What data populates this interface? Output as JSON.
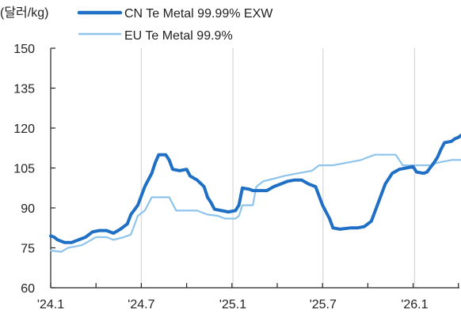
{
  "chart_data": {
    "type": "line",
    "unit_label": "(달러/kg)",
    "ylim": [
      60,
      150
    ],
    "y_ticks": [
      60,
      75,
      90,
      105,
      120,
      135,
      150
    ],
    "x_tick_labels": [
      "'24.1",
      "'24.7",
      "'25.1",
      "'25.7",
      "'26.1"
    ],
    "x_ticks": [
      "2024-01-01",
      "2024-07-01",
      "2025-01-01",
      "2025-07-01",
      "2026-01-01"
    ],
    "xlim": [
      "2024-01-01",
      "2026-04-01"
    ],
    "grid": "vertical",
    "legend_position": "top",
    "series": [
      {
        "name": "CN Te Metal 99.99% EXW",
        "color": "#1f6fc5",
        "points": [
          [
            "2024-01-01",
            79.5
          ],
          [
            "2024-01-08",
            79
          ],
          [
            "2024-01-15",
            78
          ],
          [
            "2024-01-22",
            77.5
          ],
          [
            "2024-01-29",
            77
          ],
          [
            "2024-02-12",
            77
          ],
          [
            "2024-02-26",
            78
          ],
          [
            "2024-03-11",
            79
          ],
          [
            "2024-03-25",
            81
          ],
          [
            "2024-04-08",
            81.5
          ],
          [
            "2024-04-22",
            81.5
          ],
          [
            "2024-05-06",
            80.5
          ],
          [
            "2024-05-20",
            82
          ],
          [
            "2024-06-03",
            84
          ],
          [
            "2024-06-10",
            87.5
          ],
          [
            "2024-06-24",
            91
          ],
          [
            "2024-07-08",
            98
          ],
          [
            "2024-07-22",
            103
          ],
          [
            "2024-07-29",
            107
          ],
          [
            "2024-08-05",
            110
          ],
          [
            "2024-08-19",
            110
          ],
          [
            "2024-08-26",
            108
          ],
          [
            "2024-09-02",
            104.5
          ],
          [
            "2024-09-16",
            104
          ],
          [
            "2024-09-30",
            104.5
          ],
          [
            "2024-10-07",
            102
          ],
          [
            "2024-10-21",
            100.5
          ],
          [
            "2024-11-04",
            98
          ],
          [
            "2024-11-11",
            94
          ],
          [
            "2024-11-18",
            92
          ],
          [
            "2024-11-25",
            89.5
          ],
          [
            "2024-12-09",
            89
          ],
          [
            "2024-12-23",
            88.5
          ],
          [
            "2025-01-06",
            89
          ],
          [
            "2025-01-13",
            91
          ],
          [
            "2025-01-20",
            97.5
          ],
          [
            "2025-02-03",
            97
          ],
          [
            "2025-02-10",
            96.5
          ],
          [
            "2025-02-24",
            96.5
          ],
          [
            "2025-03-10",
            96.5
          ],
          [
            "2025-03-24",
            98
          ],
          [
            "2025-04-07",
            99
          ],
          [
            "2025-04-21",
            100
          ],
          [
            "2025-05-05",
            100.5
          ],
          [
            "2025-05-19",
            100.5
          ],
          [
            "2025-06-02",
            99
          ],
          [
            "2025-06-16",
            98
          ],
          [
            "2025-06-30",
            91
          ],
          [
            "2025-07-14",
            86
          ],
          [
            "2025-07-21",
            82.5
          ],
          [
            "2025-08-04",
            82
          ],
          [
            "2025-08-25",
            82.5
          ],
          [
            "2025-09-08",
            82.5
          ],
          [
            "2025-09-22",
            83
          ],
          [
            "2025-10-06",
            85
          ],
          [
            "2025-10-20",
            92
          ],
          [
            "2025-11-03",
            99
          ],
          [
            "2025-11-17",
            103
          ],
          [
            "2025-12-01",
            104.5
          ],
          [
            "2025-12-15",
            105
          ],
          [
            "2025-12-29",
            105.5
          ],
          [
            "2026-01-05",
            103.5
          ],
          [
            "2026-01-19",
            103
          ],
          [
            "2026-01-26",
            103.5
          ],
          [
            "2026-02-09",
            107
          ],
          [
            "2026-02-16",
            109
          ],
          [
            "2026-02-23",
            112
          ],
          [
            "2026-03-02",
            114.5
          ],
          [
            "2026-03-16",
            115
          ],
          [
            "2026-03-23",
            116
          ],
          [
            "2026-03-30",
            116.5
          ],
          [
            "2026-04-06",
            117.5
          ],
          [
            "2026-04-13",
            118
          ],
          [
            "2026-04-20",
            119
          ],
          [
            "2026-04-27",
            119.5
          ],
          [
            "2026-05-04",
            118.5
          ]
        ]
      },
      {
        "name": "EU Te Metal 99.9%",
        "color": "#8ec4ec",
        "points": [
          [
            "2024-01-01",
            74
          ],
          [
            "2024-01-22",
            73.5
          ],
          [
            "2024-02-05",
            75
          ],
          [
            "2024-02-19",
            75.5
          ],
          [
            "2024-03-04",
            76
          ],
          [
            "2024-03-18",
            77.5
          ],
          [
            "2024-04-01",
            79
          ],
          [
            "2024-04-22",
            79
          ],
          [
            "2024-05-06",
            78
          ],
          [
            "2024-05-27",
            79
          ],
          [
            "2024-06-10",
            80
          ],
          [
            "2024-06-24",
            87
          ],
          [
            "2024-07-08",
            89
          ],
          [
            "2024-07-22",
            94
          ],
          [
            "2024-08-05",
            94
          ],
          [
            "2024-08-26",
            94
          ],
          [
            "2024-09-09",
            89
          ],
          [
            "2024-09-23",
            89
          ],
          [
            "2024-10-21",
            89
          ],
          [
            "2024-11-11",
            87.5
          ],
          [
            "2024-12-02",
            87
          ],
          [
            "2024-12-16",
            86
          ],
          [
            "2025-01-06",
            86
          ],
          [
            "2025-01-13",
            87
          ],
          [
            "2025-01-20",
            91
          ],
          [
            "2025-02-10",
            91
          ],
          [
            "2025-02-17",
            98
          ],
          [
            "2025-03-03",
            100
          ],
          [
            "2025-03-24",
            101
          ],
          [
            "2025-04-14",
            102
          ],
          [
            "2025-05-12",
            103
          ],
          [
            "2025-06-09",
            104
          ],
          [
            "2025-06-23",
            106
          ],
          [
            "2025-07-21",
            106
          ],
          [
            "2025-08-18",
            107
          ],
          [
            "2025-09-15",
            108
          ],
          [
            "2025-10-13",
            110
          ],
          [
            "2025-11-10",
            110
          ],
          [
            "2025-11-24",
            110
          ],
          [
            "2025-12-08",
            106
          ],
          [
            "2026-01-05",
            106
          ],
          [
            "2026-02-02",
            106
          ],
          [
            "2026-02-16",
            107
          ],
          [
            "2026-03-16",
            108
          ],
          [
            "2026-04-06",
            108
          ],
          [
            "2026-04-13",
            110
          ],
          [
            "2026-05-04",
            110
          ]
        ]
      }
    ]
  }
}
